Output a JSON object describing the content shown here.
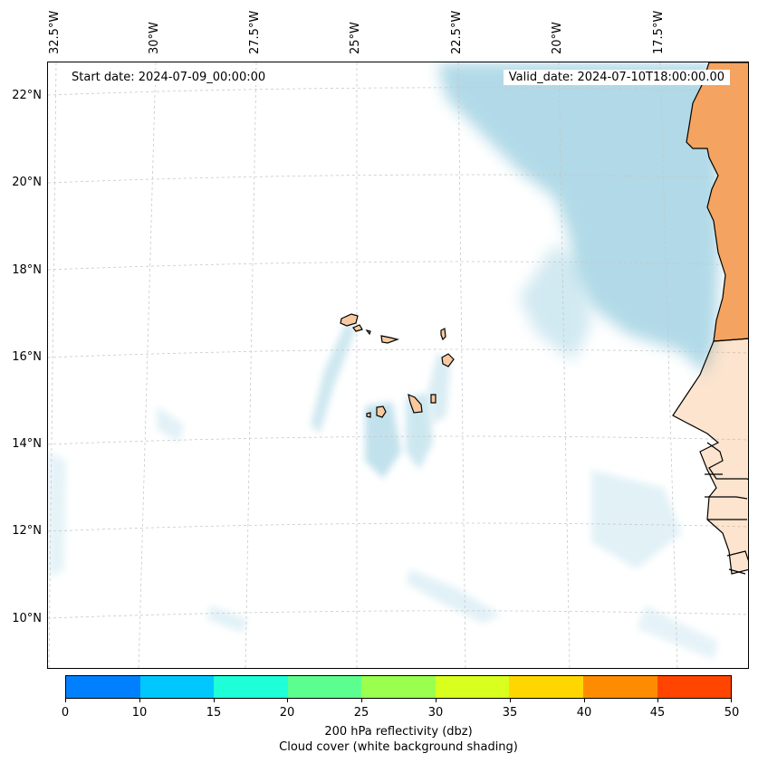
{
  "map": {
    "start_date": "Start date: 2024-07-09_00:00:00",
    "valid_date": "Valid_date: 2024-07-10T18:00:00.00",
    "lon_labels": [
      "32.5°W",
      "30°W",
      "27.5°W",
      "25°W",
      "22.5°W",
      "20°W",
      "17.5°W"
    ],
    "lat_labels": [
      "22°N",
      "20°N",
      "18°N",
      "16°N",
      "14°N",
      "12°N",
      "10°N"
    ],
    "colors": {
      "land": "#f4a460",
      "cloud": "#add8e6",
      "cloud_light": "#dff0f6",
      "island_fill": "#f8c9a0"
    }
  },
  "colorbar": {
    "ticks": [
      "0",
      "10",
      "15",
      "20",
      "25",
      "30",
      "35",
      "40",
      "45",
      "50"
    ],
    "colors": [
      "#0080ff",
      "#00c8ff",
      "#1effd8",
      "#5cff8f",
      "#9aff4f",
      "#d8ff1e",
      "#ffd700",
      "#ff8c00",
      "#ff4500"
    ],
    "label": "200 hPa reflectivity (dbz)",
    "sublabel": "Cloud cover (white background shading)"
  }
}
